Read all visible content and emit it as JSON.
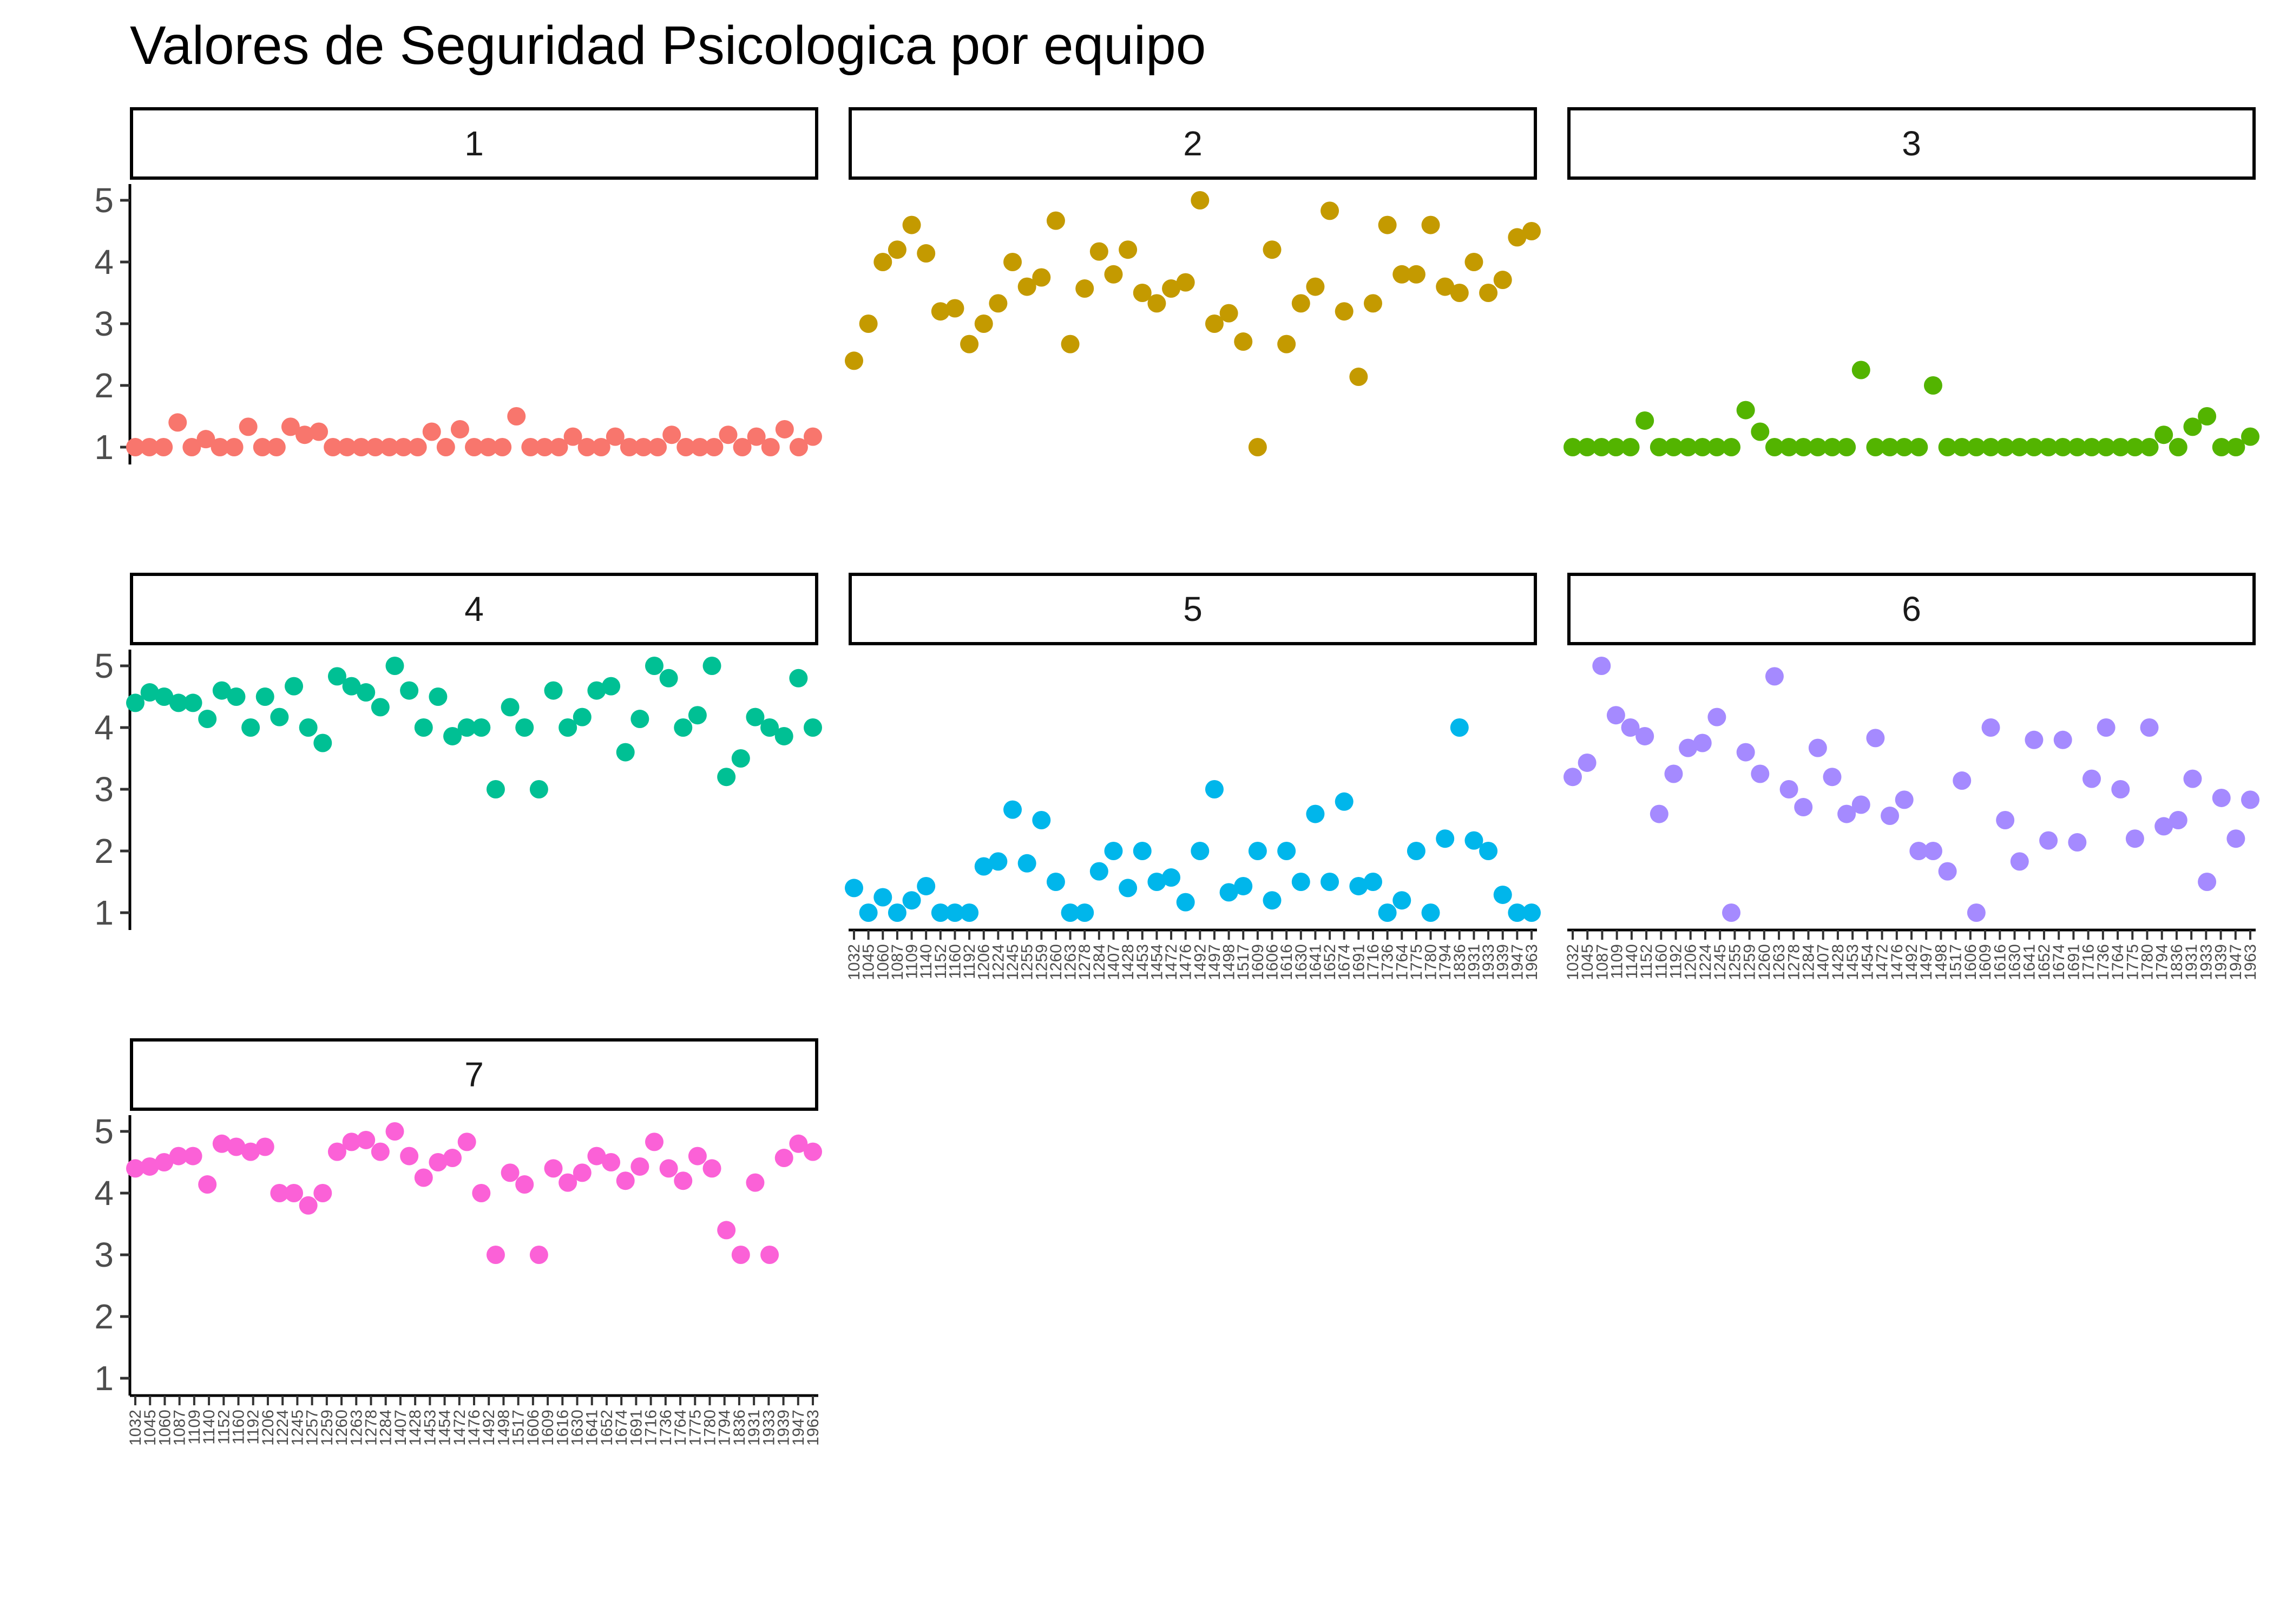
{
  "chart_data": {
    "type": "scatter",
    "title": "Valores de Seguridad Psicologica por equipo",
    "y_ticks": [
      1,
      2,
      3,
      4,
      5
    ],
    "ylim": [
      1,
      5
    ],
    "legend": "none",
    "grid": false,
    "x_categories": {
      "team5": [
        "1032",
        "1045",
        "1060",
        "1087",
        "1109",
        "1140",
        "1152",
        "1160",
        "1192",
        "1206",
        "1224",
        "1245",
        "1255",
        "1259",
        "1260",
        "1263",
        "1278",
        "1284",
        "1407",
        "1428",
        "1453",
        "1454",
        "1472",
        "1476",
        "1492",
        "1497",
        "1498",
        "1517",
        "1609",
        "1606",
        "1616",
        "1630",
        "1641",
        "1652",
        "1674",
        "1691",
        "1716",
        "1736",
        "1764",
        "1775",
        "1780",
        "1794",
        "1836",
        "1931",
        "1933",
        "1939",
        "1947",
        "1963"
      ],
      "team6": [
        "1032",
        "1045",
        "1087",
        "1109",
        "1140",
        "1152",
        "1160",
        "1192",
        "1206",
        "1224",
        "1245",
        "1255",
        "1259",
        "1260",
        "1263",
        "1278",
        "1284",
        "1407",
        "1428",
        "1453",
        "1454",
        "1472",
        "1476",
        "1492",
        "1497",
        "1498",
        "1517",
        "1606",
        "1609",
        "1616",
        "1630",
        "1641",
        "1652",
        "1674",
        "1691",
        "1716",
        "1736",
        "1764",
        "1775",
        "1780",
        "1794",
        "1836",
        "1931",
        "1933",
        "1939",
        "1947",
        "1963"
      ],
      "team7": [
        "1032",
        "1045",
        "1060",
        "1087",
        "1109",
        "1140",
        "1152",
        "1160",
        "1192",
        "1206",
        "1224",
        "1245",
        "1257",
        "1259",
        "1260",
        "1263",
        "1278",
        "1284",
        "1407",
        "1428",
        "1453",
        "1454",
        "1472",
        "1476",
        "1492",
        "1498",
        "1517",
        "1606",
        "1609",
        "1616",
        "1630",
        "1641",
        "1652",
        "1674",
        "1691",
        "1716",
        "1736",
        "1764",
        "1775",
        "1780",
        "1794",
        "1836",
        "1931",
        "1933",
        "1939",
        "1947",
        "1963"
      ]
    },
    "panels": [
      {
        "label": "1",
        "color": "#F8766D",
        "values": [
          1,
          1,
          1,
          1.4,
          1,
          1.13,
          1,
          1,
          1.33,
          1,
          1,
          1.33,
          1.2,
          1.25,
          1,
          1,
          1,
          1,
          1,
          1,
          1,
          1.25,
          1,
          1.29,
          1,
          1,
          1,
          1.5,
          1,
          1,
          1,
          1.17,
          1,
          1,
          1.17,
          1,
          1,
          1,
          1.2,
          1,
          1,
          1,
          1.2,
          1,
          1.17,
          1,
          1.29,
          1,
          1.17
        ]
      },
      {
        "label": "2",
        "color": "#C49A00",
        "values": [
          2.4,
          3,
          4,
          4.2,
          4.6,
          4.14,
          3.2,
          3.25,
          2.67,
          3,
          3.33,
          4,
          3.6,
          3.75,
          4.67,
          2.67,
          3.57,
          4.17,
          3.8,
          4.2,
          3.5,
          3.33,
          3.57,
          3.67,
          5,
          3,
          3.17,
          2.71,
          1,
          4.2,
          2.67,
          3.33,
          3.6,
          4.83,
          3.2,
          2.14,
          3.33,
          4.6,
          3.8,
          3.8,
          4.6,
          3.6,
          3.5,
          4,
          3.5,
          3.71,
          4.4,
          4.5
        ]
      },
      {
        "label": "3",
        "color": "#53B400",
        "values": [
          1,
          1,
          1,
          1,
          1,
          1.43,
          1,
          1,
          1,
          1,
          1,
          1,
          1.6,
          1.25,
          1,
          1,
          1,
          1,
          1,
          1,
          2.25,
          1,
          1,
          1,
          1,
          2,
          1,
          1,
          1,
          1,
          1,
          1,
          1,
          1,
          1,
          1,
          1,
          1,
          1,
          1,
          1,
          1.2,
          1,
          1.33,
          1.5,
          1,
          1,
          1.17
        ]
      },
      {
        "label": "4",
        "color": "#00C094",
        "values": [
          4.4,
          4.57,
          4.5,
          4.4,
          4.4,
          4.14,
          4.6,
          4.5,
          4,
          4.5,
          4.17,
          4.67,
          4,
          3.75,
          4.83,
          4.67,
          4.57,
          4.33,
          5,
          4.6,
          4,
          4.5,
          3.86,
          4,
          4,
          3,
          4.33,
          4,
          3,
          4.6,
          4,
          4.17,
          4.6,
          4.67,
          3.6,
          4.14,
          5,
          4.8,
          4,
          4.2,
          5,
          3.2,
          3.5,
          4.17,
          4,
          3.86,
          4.8,
          4
        ]
      },
      {
        "label": "5",
        "color": "#00B6EB",
        "values": [
          1.4,
          1,
          1.25,
          1,
          1.2,
          1.43,
          1,
          1,
          1,
          1.75,
          1.83,
          2.67,
          1.8,
          2.5,
          1.5,
          1,
          1,
          1.67,
          2,
          1.4,
          2,
          1.5,
          1.57,
          1.17,
          2,
          3,
          1.33,
          1.43,
          2,
          1.2,
          2,
          1.5,
          2.6,
          1.5,
          2.8,
          1.43,
          1.5,
          1,
          1.2,
          2,
          1,
          2.2,
          4,
          2.17,
          2,
          1.29,
          1,
          1
        ]
      },
      {
        "label": "6",
        "color": "#A58AFF",
        "values": [
          3.2,
          3.43,
          5,
          4.2,
          4,
          3.86,
          2.6,
          3.25,
          3.67,
          3.75,
          4.17,
          1,
          3.6,
          3.25,
          4.83,
          3,
          2.71,
          3.67,
          3.2,
          2.6,
          2.75,
          3.83,
          2.57,
          2.83,
          2,
          2,
          1.67,
          3.14,
          1,
          4,
          2.5,
          1.83,
          3.8,
          2.17,
          3.8,
          2.14,
          3.17,
          4,
          3,
          2.2,
          4,
          2.4,
          2.5,
          3.17,
          1.5,
          2.86,
          2.2,
          2.83
        ]
      },
      {
        "label": "7",
        "color": "#FB61D7",
        "values": [
          4.4,
          4.43,
          4.5,
          4.6,
          4.6,
          4.14,
          4.8,
          4.75,
          4.67,
          4.75,
          4,
          4,
          3.8,
          4,
          4.67,
          4.83,
          4.86,
          4.67,
          5,
          4.6,
          4.25,
          4.5,
          4.57,
          4.83,
          4,
          3,
          4.33,
          4.14,
          3,
          4.4,
          4.17,
          4.33,
          4.6,
          4.5,
          4.2,
          4.43,
          4.83,
          4.4,
          4.2,
          4.6,
          4.4,
          3.4,
          3,
          4.17,
          3,
          4.57,
          4.8,
          4.67
        ]
      }
    ]
  }
}
